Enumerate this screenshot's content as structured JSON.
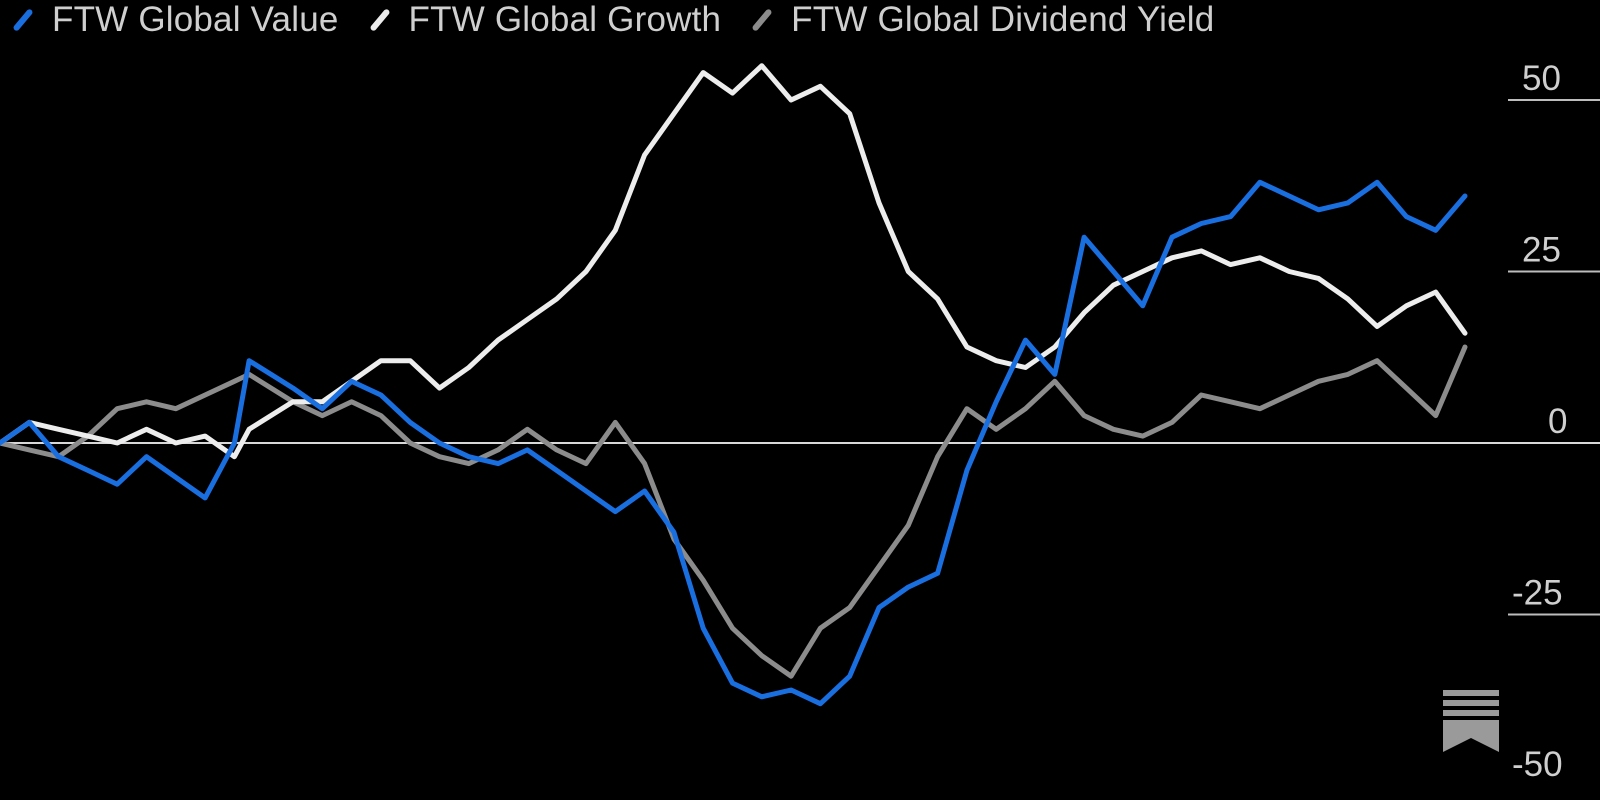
{
  "legend": [
    {
      "label": "FTW Global Value",
      "color": "#1a6fe0"
    },
    {
      "label": "FTW Global Growth",
      "color": "#ededed"
    },
    {
      "label": "FTW Global Dividend Yield",
      "color": "#8c8c8c"
    }
  ],
  "chart_data": {
    "type": "line",
    "title": "",
    "xlabel": "",
    "ylabel": "",
    "ylim": [
      -50,
      50
    ],
    "y_ticks": [
      50,
      25,
      0,
      -25,
      -50
    ],
    "x_range": [
      0,
      100
    ],
    "baseline": 0,
    "grid": "zero line only",
    "legend_position": "top",
    "series": [
      {
        "name": "FTW Global Value",
        "color": "#1a6fe0",
        "x": [
          0,
          2,
          4,
          6,
          8,
          10,
          12,
          14,
          16,
          17,
          20,
          22,
          24,
          26,
          28,
          30,
          32,
          34,
          36,
          38,
          40,
          42,
          44,
          46,
          48,
          50,
          52,
          54,
          56,
          58,
          60,
          62,
          64,
          66,
          68,
          70,
          72,
          74,
          76,
          78,
          80,
          82,
          84,
          86,
          88,
          90,
          92,
          94,
          96,
          98,
          100
        ],
        "y": [
          0,
          3,
          -2,
          -4,
          -6,
          -2,
          -5,
          -8,
          0,
          12,
          8,
          5,
          9,
          7,
          3,
          0,
          -2,
          -3,
          -1,
          -4,
          -7,
          -10,
          -7,
          -13,
          -27,
          -35,
          -37,
          -36,
          -38,
          -34,
          -24,
          -21,
          -19,
          -4,
          6,
          15,
          10,
          30,
          25,
          20,
          30,
          32,
          33,
          38,
          36,
          34,
          35,
          38,
          33,
          31,
          36
        ]
      },
      {
        "name": "FTW Global Growth",
        "color": "#ededed",
        "x": [
          0,
          2,
          4,
          6,
          8,
          10,
          12,
          14,
          16,
          17,
          20,
          22,
          24,
          26,
          28,
          30,
          32,
          34,
          36,
          38,
          40,
          42,
          44,
          46,
          48,
          50,
          52,
          54,
          56,
          58,
          60,
          62,
          64,
          66,
          68,
          70,
          72,
          74,
          76,
          78,
          80,
          82,
          84,
          86,
          88,
          90,
          92,
          94,
          96,
          98,
          100
        ],
        "y": [
          0,
          3,
          2,
          1,
          0,
          2,
          0,
          1,
          -2,
          2,
          6,
          6,
          9,
          12,
          12,
          8,
          11,
          15,
          18,
          21,
          25,
          31,
          42,
          48,
          54,
          51,
          55,
          50,
          52,
          48,
          35,
          25,
          21,
          14,
          12,
          11,
          14,
          19,
          23,
          25,
          27,
          28,
          26,
          27,
          25,
          24,
          21,
          17,
          20,
          22,
          16
        ]
      },
      {
        "name": "FTW Global Dividend Yield",
        "color": "#8c8c8c",
        "x": [
          0,
          2,
          4,
          6,
          8,
          10,
          12,
          14,
          16,
          17,
          20,
          22,
          24,
          26,
          28,
          30,
          32,
          34,
          36,
          38,
          40,
          42,
          44,
          46,
          48,
          50,
          52,
          54,
          56,
          58,
          60,
          62,
          64,
          66,
          68,
          70,
          72,
          74,
          76,
          78,
          80,
          82,
          84,
          86,
          88,
          90,
          92,
          94,
          96,
          98,
          100
        ],
        "y": [
          0,
          -1,
          -2,
          1,
          5,
          6,
          5,
          7,
          9,
          10,
          6,
          4,
          6,
          4,
          0,
          -2,
          -3,
          -1,
          2,
          -1,
          -3,
          3,
          -3,
          -14,
          -20,
          -27,
          -31,
          -34,
          -27,
          -24,
          -18,
          -12,
          -2,
          5,
          2,
          5,
          9,
          4,
          2,
          1,
          3,
          7,
          6,
          5,
          7,
          9,
          10,
          12,
          8,
          4,
          14
        ]
      }
    ]
  }
}
